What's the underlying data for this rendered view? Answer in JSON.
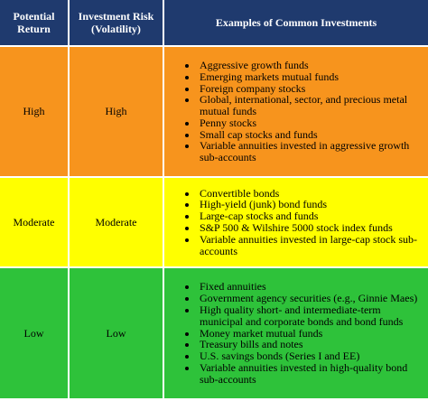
{
  "table": {
    "headers": [
      "Potential Return",
      "Investment Risk (Volatility)",
      "Examples of Common Investments"
    ],
    "rows": [
      {
        "return": "High",
        "risk": "High",
        "investments": [
          "Aggressive growth funds",
          "Emerging markets mutual funds",
          "Foreign company stocks",
          "Global, international, sector, and precious metal mutual funds",
          "Penny stocks",
          "Small cap stocks and funds",
          "Variable annuities invested in aggressive growth sub-accounts"
        ]
      },
      {
        "return": "Moderate",
        "risk": "Moderate",
        "investments": [
          "Convertible bonds",
          "High-yield (junk) bond funds",
          "Large-cap stocks and funds",
          "S&P 500 & Wilshire 5000 stock index funds",
          "Variable annuities invested in large-cap stock sub-accounts"
        ]
      },
      {
        "return": "Low",
        "risk": "Low",
        "investments": [
          "Fixed annuities",
          "Government agency securities (e.g., Ginnie Maes)",
          "High quality short- and intermediate-term municipal and corporate bonds and bond funds",
          "Money market mutual funds",
          "Treasury bills and notes",
          "U.S. savings bonds (Series I and EE)",
          "Variable annuities invested in high-quality bond sub-accounts"
        ]
      }
    ]
  }
}
